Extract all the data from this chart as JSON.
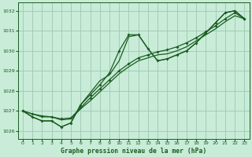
{
  "title": "Graphe pression niveau de la mer (hPa)",
  "bg_color": "#c8ecd8",
  "grid_color": "#9ec8b0",
  "line_color": "#1a5c20",
  "xlim": [
    -0.5,
    23.5
  ],
  "ylim": [
    1025.6,
    1032.4
  ],
  "yticks": [
    1026,
    1027,
    1028,
    1029,
    1030,
    1031,
    1032
  ],
  "xticks": [
    0,
    1,
    2,
    3,
    4,
    5,
    6,
    7,
    8,
    9,
    10,
    11,
    12,
    13,
    14,
    15,
    16,
    17,
    18,
    19,
    20,
    21,
    22,
    23
  ],
  "line_wiggly": {
    "x": [
      0,
      1,
      2,
      3,
      4,
      5,
      6,
      7,
      8,
      9,
      10,
      11,
      12,
      13,
      14,
      15,
      16,
      17,
      18,
      19,
      20,
      21,
      22,
      23
    ],
    "y": [
      1027.0,
      1026.7,
      1026.5,
      1026.5,
      1026.2,
      1026.4,
      1027.3,
      1027.8,
      1028.3,
      1028.9,
      1030.0,
      1030.8,
      1030.8,
      1030.1,
      1029.5,
      1029.6,
      1029.8,
      1030.0,
      1030.4,
      1030.9,
      1031.4,
      1031.9,
      1032.0,
      1031.6
    ]
  },
  "line_wiggly2": {
    "x": [
      0,
      1,
      2,
      3,
      4,
      5,
      6,
      7,
      8,
      9,
      10,
      11,
      12,
      13,
      14,
      15,
      16,
      17,
      18,
      19,
      20,
      21,
      22,
      23
    ],
    "y": [
      1027.0,
      1026.7,
      1026.5,
      1026.5,
      1026.2,
      1026.4,
      1027.3,
      1027.9,
      1028.5,
      1028.8,
      1029.5,
      1030.7,
      1030.8,
      1030.1,
      1029.5,
      1029.6,
      1029.8,
      1030.0,
      1030.4,
      1030.9,
      1031.4,
      1031.9,
      1032.0,
      1031.6
    ]
  },
  "line_trend1": {
    "x": [
      0,
      1,
      2,
      3,
      4,
      5,
      6,
      7,
      8,
      9,
      10,
      11,
      12,
      13,
      14,
      15,
      16,
      17,
      18,
      19,
      20,
      21,
      22,
      23
    ],
    "y": [
      1027.0,
      1026.85,
      1026.7,
      1026.7,
      1026.55,
      1026.6,
      1027.1,
      1027.5,
      1027.95,
      1028.4,
      1028.85,
      1029.2,
      1029.5,
      1029.65,
      1029.8,
      1029.85,
      1030.0,
      1030.2,
      1030.5,
      1030.8,
      1031.1,
      1031.45,
      1031.75,
      1031.6
    ]
  },
  "line_trend2": {
    "x": [
      0,
      1,
      2,
      3,
      4,
      5,
      6,
      7,
      8,
      9,
      10,
      11,
      12,
      13,
      14,
      15,
      16,
      17,
      18,
      19,
      20,
      21,
      22,
      23
    ],
    "y": [
      1027.0,
      1026.85,
      1026.75,
      1026.7,
      1026.6,
      1026.65,
      1027.15,
      1027.65,
      1028.1,
      1028.55,
      1029.0,
      1029.35,
      1029.65,
      1029.8,
      1029.95,
      1030.05,
      1030.2,
      1030.4,
      1030.65,
      1030.95,
      1031.25,
      1031.6,
      1031.9,
      1031.6
    ]
  }
}
